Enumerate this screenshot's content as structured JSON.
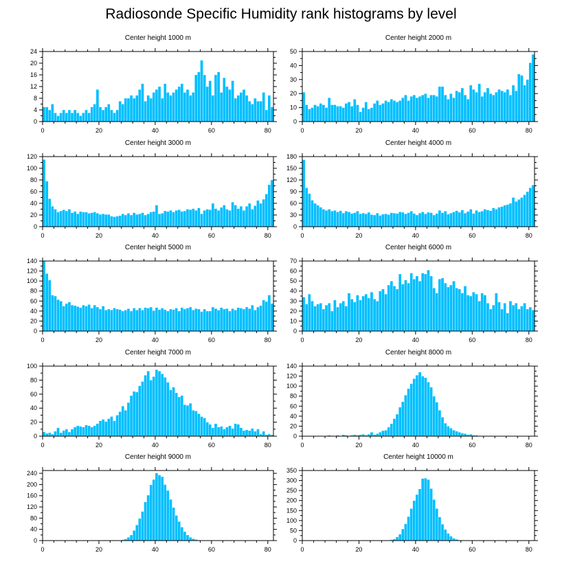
{
  "title": "Radiosonde Specific Humidity rank histograms by level",
  "colors": {
    "bar": "#00bfff",
    "bar_edge": "#ffffff",
    "axis": "#000000"
  },
  "chart_data": [
    {
      "type": "bar",
      "title": "Center height 1000 m",
      "xlim": [
        0,
        82
      ],
      "xticks": [
        0,
        20,
        40,
        60,
        80
      ],
      "ylim": [
        0,
        24
      ],
      "yticks": [
        0,
        4,
        8,
        12,
        16,
        20,
        24
      ],
      "values": [
        5,
        5,
        4,
        6,
        3,
        2,
        3,
        4,
        3,
        4,
        3,
        4,
        3,
        2,
        3,
        4,
        3,
        5,
        6,
        11,
        5,
        4,
        5,
        6,
        4,
        3,
        4,
        7,
        6,
        8,
        8,
        9,
        8,
        9,
        11,
        13,
        7,
        9,
        8,
        10,
        11,
        12,
        8,
        13,
        10,
        9,
        10,
        11,
        12,
        13,
        10,
        11,
        9,
        10,
        16,
        17,
        21,
        16,
        12,
        14,
        9,
        16,
        17,
        10,
        15,
        12,
        11,
        14,
        8,
        9,
        10,
        11,
        9,
        7,
        6,
        8,
        7,
        7,
        10,
        4,
        9,
        5
      ]
    },
    {
      "type": "bar",
      "title": "Center height 2000 m",
      "xlim": [
        0,
        82
      ],
      "xticks": [
        0,
        20,
        40,
        60,
        80
      ],
      "ylim": [
        0,
        50
      ],
      "yticks": [
        0,
        10,
        20,
        30,
        40,
        50
      ],
      "values": [
        21,
        12,
        9,
        10,
        12,
        11,
        13,
        12,
        10,
        17,
        12,
        12,
        11,
        11,
        10,
        13,
        14,
        11,
        16,
        12,
        7,
        10,
        14,
        9,
        10,
        13,
        15,
        12,
        13,
        15,
        14,
        16,
        15,
        14,
        15,
        17,
        19,
        15,
        18,
        19,
        17,
        18,
        19,
        20,
        17,
        19,
        19,
        18,
        25,
        25,
        19,
        16,
        20,
        17,
        22,
        21,
        24,
        19,
        16,
        26,
        23,
        21,
        27,
        18,
        21,
        24,
        20,
        19,
        21,
        23,
        22,
        21,
        23,
        19,
        26,
        22,
        34,
        33,
        26,
        30,
        42,
        48
      ]
    },
    {
      "type": "bar",
      "title": "Center height 3000 m",
      "xlim": [
        0,
        82
      ],
      "xticks": [
        0,
        20,
        40,
        60,
        80
      ],
      "ylim": [
        0,
        120
      ],
      "yticks": [
        0,
        20,
        40,
        60,
        80,
        100,
        120
      ],
      "values": [
        115,
        78,
        48,
        35,
        30,
        25,
        27,
        29,
        27,
        30,
        24,
        26,
        22,
        26,
        25,
        25,
        23,
        24,
        25,
        23,
        21,
        22,
        21,
        21,
        18,
        17,
        18,
        19,
        22,
        20,
        23,
        20,
        24,
        21,
        22,
        24,
        20,
        22,
        25,
        26,
        37,
        22,
        23,
        27,
        26,
        28,
        25,
        28,
        29,
        26,
        27,
        30,
        29,
        31,
        28,
        32,
        22,
        28,
        30,
        29,
        40,
        31,
        28,
        33,
        37,
        30,
        28,
        42,
        37,
        31,
        35,
        28,
        35,
        40,
        30,
        36,
        45,
        40,
        47,
        56,
        72,
        80
      ]
    },
    {
      "type": "bar",
      "title": "Center height 4000 m",
      "xlim": [
        0,
        82
      ],
      "xticks": [
        0,
        20,
        40,
        60,
        80
      ],
      "ylim": [
        0,
        180
      ],
      "yticks": [
        0,
        30,
        60,
        90,
        120,
        150,
        180
      ],
      "values": [
        172,
        100,
        85,
        68,
        60,
        55,
        50,
        45,
        42,
        45,
        40,
        42,
        38,
        41,
        35,
        40,
        38,
        34,
        36,
        40,
        33,
        35,
        33,
        37,
        31,
        30,
        35,
        29,
        32,
        33,
        31,
        36,
        35,
        34,
        38,
        37,
        33,
        36,
        40,
        34,
        30,
        35,
        38,
        33,
        37,
        36,
        30,
        34,
        42,
        36,
        40,
        32,
        35,
        38,
        41,
        37,
        43,
        35,
        39,
        45,
        34,
        42,
        38,
        40,
        45,
        43,
        41,
        48,
        45,
        50,
        52,
        55,
        57,
        60,
        75,
        65,
        70,
        75,
        82,
        90,
        100,
        107
      ]
    },
    {
      "type": "bar",
      "title": "Center height 5000 m",
      "xlim": [
        0,
        82
      ],
      "xticks": [
        0,
        20,
        40,
        60,
        80
      ],
      "ylim": [
        0,
        140
      ],
      "yticks": [
        0,
        20,
        40,
        60,
        80,
        100,
        120,
        140
      ],
      "values": [
        140,
        115,
        102,
        72,
        70,
        63,
        60,
        50,
        55,
        58,
        52,
        51,
        49,
        47,
        52,
        50,
        53,
        46,
        52,
        48,
        44,
        50,
        42,
        44,
        42,
        46,
        44,
        43,
        40,
        42,
        45,
        40,
        46,
        42,
        46,
        42,
        47,
        46,
        48,
        41,
        47,
        43,
        46,
        43,
        40,
        44,
        43,
        46,
        40,
        47,
        44,
        46,
        48,
        42,
        45,
        44,
        39,
        44,
        40,
        40,
        48,
        45,
        42,
        47,
        44,
        45,
        40,
        45,
        42,
        47,
        46,
        44,
        48,
        45,
        52,
        42,
        48,
        51,
        62,
        59,
        72,
        55
      ]
    },
    {
      "type": "bar",
      "title": "Center height 6000 m",
      "xlim": [
        0,
        82
      ],
      "xticks": [
        0,
        20,
        40,
        60,
        80
      ],
      "ylim": [
        0,
        70
      ],
      "yticks": [
        0,
        10,
        20,
        30,
        40,
        50,
        60,
        70
      ],
      "values": [
        34,
        27,
        37,
        30,
        25,
        27,
        28,
        22,
        26,
        28,
        20,
        31,
        24,
        28,
        30,
        25,
        38,
        32,
        29,
        36,
        31,
        35,
        37,
        33,
        39,
        32,
        30,
        40,
        42,
        37,
        46,
        50,
        45,
        42,
        57,
        47,
        51,
        48,
        58,
        52,
        55,
        50,
        58,
        57,
        61,
        55,
        43,
        38,
        52,
        53,
        48,
        44,
        46,
        50,
        43,
        42,
        38,
        45,
        36,
        35,
        39,
        37,
        30,
        38,
        36,
        28,
        22,
        26,
        38,
        29,
        22,
        28,
        18,
        30,
        26,
        28,
        22,
        25,
        28,
        22,
        24,
        21
      ]
    },
    {
      "type": "bar",
      "title": "Center height 7000 m",
      "xlim": [
        0,
        82
      ],
      "xticks": [
        0,
        20,
        40,
        60,
        80
      ],
      "ylim": [
        0,
        100
      ],
      "yticks": [
        0,
        20,
        40,
        60,
        80,
        100
      ],
      "values": [
        6,
        4,
        5,
        3,
        7,
        12,
        5,
        8,
        10,
        6,
        10,
        13,
        15,
        14,
        13,
        16,
        15,
        13,
        15,
        18,
        22,
        24,
        21,
        25,
        28,
        22,
        30,
        35,
        43,
        37,
        48,
        58,
        64,
        63,
        72,
        78,
        87,
        93,
        80,
        85,
        95,
        93,
        89,
        84,
        77,
        66,
        70,
        62,
        56,
        58,
        45,
        44,
        47,
        37,
        36,
        32,
        28,
        26,
        20,
        17,
        12,
        18,
        13,
        14,
        10,
        13,
        15,
        11,
        18,
        17,
        12,
        8,
        9,
        8,
        11,
        7,
        10,
        3,
        7,
        2,
        3,
        2
      ]
    },
    {
      "type": "bar",
      "title": "Center height 8000 m",
      "xlim": [
        0,
        82
      ],
      "xticks": [
        0,
        20,
        40,
        60,
        80
      ],
      "ylim": [
        0,
        140
      ],
      "yticks": [
        0,
        20,
        40,
        60,
        80,
        100,
        120,
        140
      ],
      "values": [
        0,
        0,
        0,
        0,
        1,
        0,
        0,
        0,
        1,
        2,
        1,
        1,
        2,
        1,
        3,
        2,
        1,
        2,
        3,
        2,
        3,
        4,
        2,
        4,
        8,
        3,
        5,
        8,
        11,
        12,
        18,
        25,
        35,
        44,
        58,
        69,
        82,
        95,
        105,
        115,
        122,
        128,
        120,
        117,
        108,
        98,
        80,
        68,
        52,
        38,
        26,
        20,
        16,
        12,
        10,
        8,
        6,
        5,
        3,
        4,
        2,
        2,
        1,
        1,
        1,
        0,
        1,
        0,
        0,
        0,
        0,
        0,
        0,
        0,
        0,
        0,
        0,
        0,
        0,
        0,
        0,
        0
      ]
    },
    {
      "type": "bar",
      "title": "Center height 9000 m",
      "xlim": [
        0,
        82
      ],
      "xticks": [
        0,
        20,
        40,
        60,
        80
      ],
      "ylim": [
        0,
        250
      ],
      "yticks": [
        0,
        40,
        80,
        120,
        160,
        200,
        240
      ],
      "values": [
        0,
        0,
        0,
        0,
        0,
        0,
        0,
        0,
        0,
        0,
        0,
        0,
        0,
        0,
        0,
        0,
        0,
        0,
        0,
        0,
        0,
        0,
        0,
        0,
        0,
        0,
        0,
        1,
        3,
        6,
        12,
        20,
        36,
        56,
        79,
        104,
        138,
        162,
        199,
        218,
        241,
        234,
        228,
        200,
        179,
        147,
        118,
        90,
        68,
        48,
        32,
        20,
        12,
        7,
        4,
        2,
        1,
        0,
        0,
        0,
        0,
        0,
        0,
        0,
        0,
        0,
        0,
        0,
        0,
        0,
        0,
        0,
        0,
        0,
        0,
        0,
        0,
        0,
        0,
        0,
        0,
        0
      ]
    },
    {
      "type": "bar",
      "title": "Center height 10000 m",
      "xlim": [
        0,
        82
      ],
      "xticks": [
        0,
        20,
        40,
        60,
        80
      ],
      "ylim": [
        0,
        350
      ],
      "yticks": [
        0,
        50,
        100,
        150,
        200,
        250,
        300,
        350
      ],
      "values": [
        0,
        0,
        0,
        0,
        0,
        0,
        0,
        0,
        0,
        0,
        0,
        0,
        0,
        0,
        0,
        0,
        0,
        0,
        0,
        0,
        0,
        0,
        0,
        0,
        0,
        0,
        0,
        0,
        0,
        0,
        2,
        4,
        8,
        18,
        32,
        58,
        84,
        120,
        160,
        200,
        230,
        258,
        310,
        312,
        305,
        260,
        205,
        160,
        118,
        82,
        56,
        36,
        22,
        12,
        6,
        3,
        2,
        1,
        0,
        0,
        0,
        0,
        0,
        0,
        0,
        0,
        0,
        0,
        0,
        0,
        0,
        0,
        0,
        0,
        0,
        0,
        0,
        0,
        0,
        0,
        0,
        0
      ]
    }
  ]
}
